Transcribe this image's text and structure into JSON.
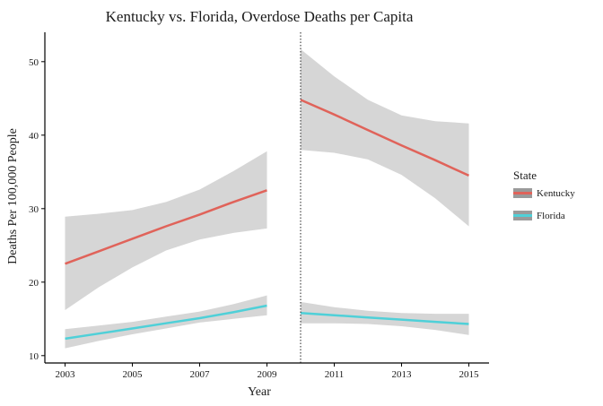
{
  "chart_data": {
    "type": "line",
    "title": "Kentucky vs. Florida, Overdose Deaths per Capita",
    "xlabel": "Year",
    "ylabel": "Deaths Per 100,000 People",
    "xlim": [
      2002.4,
      2015.6
    ],
    "ylim": [
      9,
      54
    ],
    "x_ticks": [
      2003,
      2005,
      2007,
      2009,
      2011,
      2013,
      2015
    ],
    "y_ticks": [
      10,
      20,
      30,
      40,
      50
    ],
    "grid": false,
    "vline": {
      "x": 2010,
      "style": "dotted"
    },
    "legend": {
      "title": "State",
      "placement": "right",
      "entries": [
        {
          "label": "Kentucky",
          "color": "#e0635a"
        },
        {
          "label": "Florida",
          "color": "#4fd0d8"
        }
      ]
    },
    "band_color": "#d6d6d6",
    "series": [
      {
        "name": "Kentucky",
        "color": "#e0635a",
        "segments": [
          {
            "x": [
              2003,
              2004,
              2005,
              2006,
              2007,
              2008,
              2009
            ],
            "y": [
              22.5,
              24.2,
              25.9,
              27.6,
              29.2,
              30.9,
              32.5
            ],
            "lower": [
              16.2,
              19.3,
              22.0,
              24.3,
              25.8,
              26.7,
              27.3
            ],
            "upper": [
              28.9,
              29.3,
              29.8,
              30.9,
              32.6,
              35.1,
              37.8
            ]
          },
          {
            "x": [
              2010,
              2011,
              2012,
              2013,
              2014,
              2015
            ],
            "y": [
              44.8,
              42.8,
              40.7,
              38.6,
              36.6,
              34.5
            ],
            "lower": [
              38.0,
              37.6,
              36.7,
              34.6,
              31.4,
              27.6
            ],
            "upper": [
              51.7,
              48.0,
              44.8,
              42.7,
              41.9,
              41.6
            ]
          }
        ]
      },
      {
        "name": "Florida",
        "color": "#4fd0d8",
        "segments": [
          {
            "x": [
              2003,
              2004,
              2005,
              2006,
              2007,
              2008,
              2009
            ],
            "y": [
              12.3,
              13.0,
              13.7,
              14.4,
              15.1,
              15.9,
              16.8
            ],
            "lower": [
              11.0,
              12.0,
              12.9,
              13.7,
              14.5,
              15.0,
              15.5
            ],
            "upper": [
              13.6,
              14.1,
              14.6,
              15.3,
              16.0,
              17.0,
              18.2
            ]
          },
          {
            "x": [
              2010,
              2011,
              2012,
              2013,
              2014,
              2015
            ],
            "y": [
              15.8,
              15.5,
              15.2,
              14.9,
              14.6,
              14.3
            ],
            "lower": [
              14.4,
              14.4,
              14.3,
              14.0,
              13.5,
              12.8
            ],
            "upper": [
              17.3,
              16.6,
              16.1,
              15.8,
              15.7,
              15.7
            ]
          }
        ]
      }
    ]
  }
}
